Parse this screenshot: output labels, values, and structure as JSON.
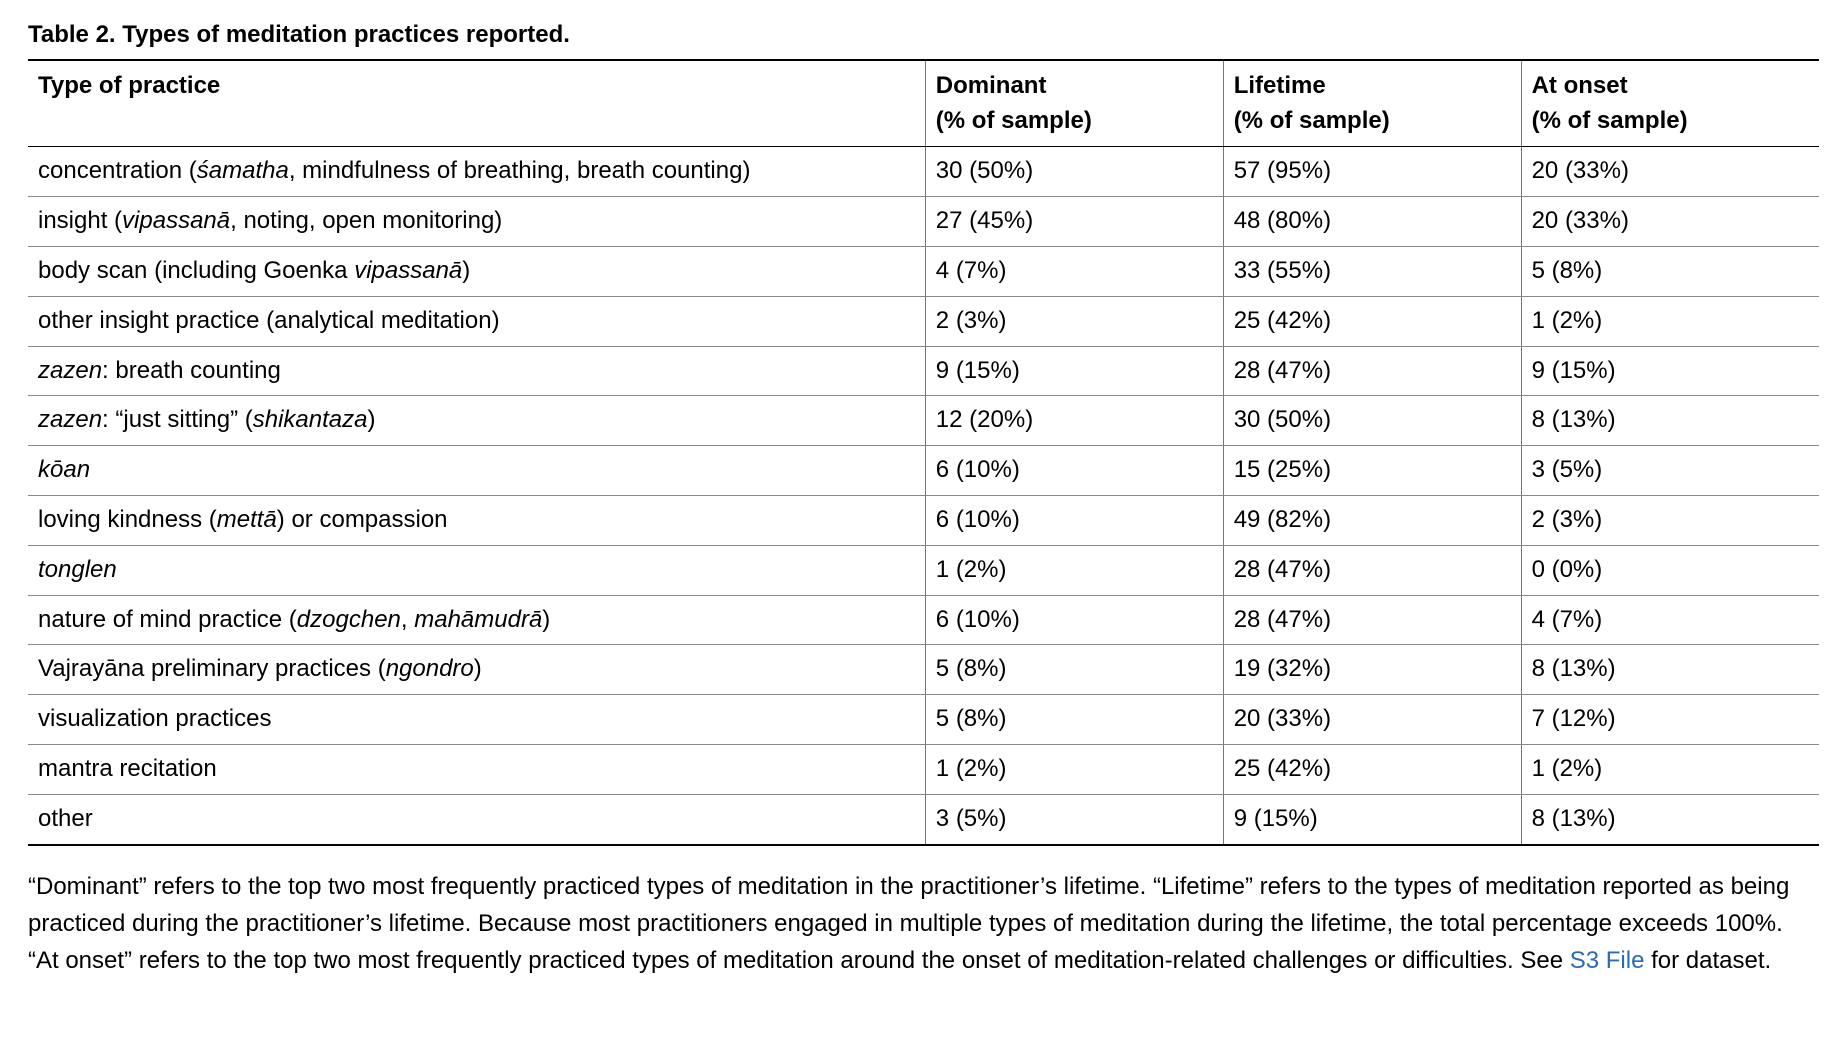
{
  "table": {
    "title": "Table 2.  Types of meditation practices reported.",
    "columns": {
      "c0": "Type of practice",
      "c1_line1": "Dominant",
      "c1_line2": "(% of sample)",
      "c2_line1": "Lifetime",
      "c2_line2": "(% of sample)",
      "c3_line1": "At onset",
      "c3_line2": "(% of sample)"
    },
    "column_widths_pct": [
      50,
      16.6,
      16.6,
      16.6
    ],
    "border_color": "#000000",
    "inner_rule_color": "#888888",
    "vertical_rule_color": "#777777",
    "font_size_pt": 18,
    "rows": [
      {
        "practice_html": "concentration (<span class=\"italic\">śamatha</span>, mindfulness of breathing, breath counting)",
        "dominant": "30 (50%)",
        "lifetime": "57 (95%)",
        "onset": "20 (33%)"
      },
      {
        "practice_html": "insight (<span class=\"italic\">vipassanā</span>, noting, open monitoring)",
        "dominant": "27 (45%)",
        "lifetime": "48 (80%)",
        "onset": "20 (33%)"
      },
      {
        "practice_html": "body scan (including Goenka <span class=\"italic\">vipassanā</span>)",
        "dominant": "4 (7%)",
        "lifetime": "33 (55%)",
        "onset": "5 (8%)"
      },
      {
        "practice_html": "other insight practice (analytical meditation)",
        "dominant": "2 (3%)",
        "lifetime": "25 (42%)",
        "onset": "1 (2%)"
      },
      {
        "practice_html": "<span class=\"italic\">zazen</span>: breath counting",
        "dominant": "9 (15%)",
        "lifetime": "28 (47%)",
        "onset": "9 (15%)"
      },
      {
        "practice_html": "<span class=\"italic\">zazen</span>: “just sitting” (<span class=\"italic\">shikantaza</span>)",
        "dominant": "12 (20%)",
        "lifetime": "30 (50%)",
        "onset": "8 (13%)"
      },
      {
        "practice_html": "<span class=\"italic\">kōan</span>",
        "dominant": "6 (10%)",
        "lifetime": "15 (25%)",
        "onset": "3 (5%)"
      },
      {
        "practice_html": "loving kindness (<span class=\"italic\">mettā</span>) or compassion",
        "dominant": "6 (10%)",
        "lifetime": "49 (82%)",
        "onset": "2 (3%)"
      },
      {
        "practice_html": "<span class=\"italic\">tonglen</span>",
        "dominant": "1 (2%)",
        "lifetime": "28 (47%)",
        "onset": "0 (0%)"
      },
      {
        "practice_html": "nature of mind practice (<span class=\"italic\">dzogchen</span>, <span class=\"italic\">mahāmudrā</span>)",
        "dominant": "6 (10%)",
        "lifetime": "28 (47%)",
        "onset": "4 (7%)"
      },
      {
        "practice_html": "Vajrayāna preliminary practices (<span class=\"italic\">ngondro</span>)",
        "dominant": "5 (8%)",
        "lifetime": "19 (32%)",
        "onset": "8 (13%)"
      },
      {
        "practice_html": "visualization practices",
        "dominant": "5 (8%)",
        "lifetime": "20 (33%)",
        "onset": "7 (12%)"
      },
      {
        "practice_html": "mantra recitation",
        "dominant": "1 (2%)",
        "lifetime": "25 (42%)",
        "onset": "1 (2%)"
      },
      {
        "practice_html": "other",
        "dominant": "3 (5%)",
        "lifetime": "9 (15%)",
        "onset": "8 (13%)"
      }
    ]
  },
  "caption": {
    "text_before_link": "“Dominant” refers to the top two most frequently practiced types of meditation in the practitioner’s lifetime. “Lifetime” refers to the types of meditation reported as being practiced during the practitioner’s lifetime. Because most practitioners engaged in multiple types of meditation during the lifetime, the total percentage exceeds 100%. “At onset” refers to the top two most frequently practiced types of meditation around the onset of meditation-related challenges or difficulties. See ",
    "link_text": "S3 File",
    "text_after_link": " for dataset.",
    "link_color": "#2a6bb3"
  }
}
